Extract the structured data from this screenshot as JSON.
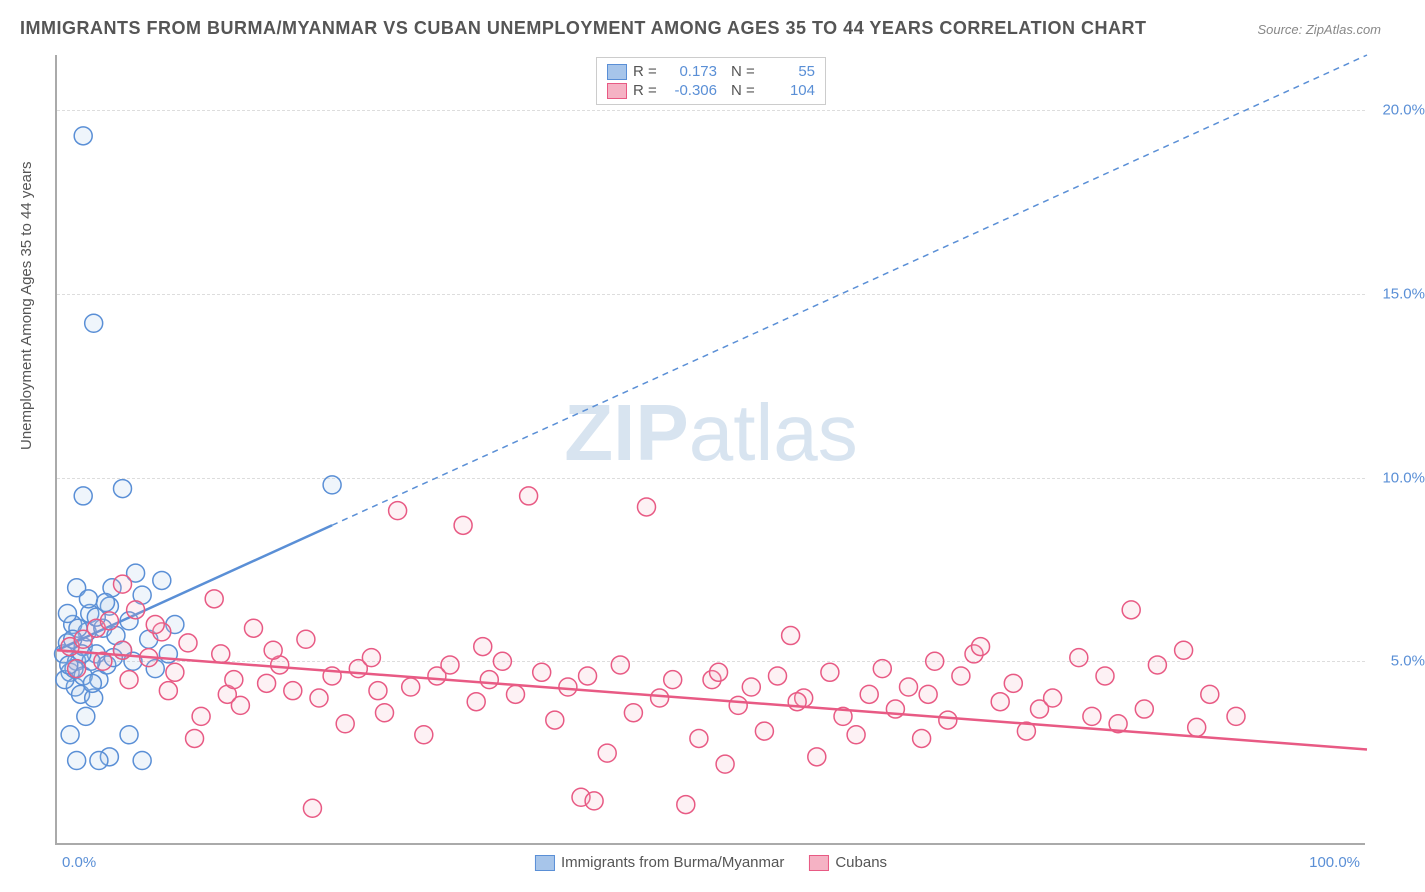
{
  "title": "IMMIGRANTS FROM BURMA/MYANMAR VS CUBAN UNEMPLOYMENT AMONG AGES 35 TO 44 YEARS CORRELATION CHART",
  "source": "Source: ZipAtlas.com",
  "ylabel": "Unemployment Among Ages 35 to 44 years",
  "watermark_bold": "ZIP",
  "watermark_rest": "atlas",
  "chart": {
    "type": "scatter",
    "xlim": [
      0,
      100
    ],
    "ylim": [
      0,
      21.5
    ],
    "x_tick_min_label": "0.0%",
    "x_tick_max_label": "100.0%",
    "y_ticks": [
      5,
      10,
      15,
      20
    ],
    "y_tick_labels": [
      "5.0%",
      "10.0%",
      "15.0%",
      "20.0%"
    ],
    "grid_color": "#dddddd",
    "axis_color": "#aaaaaa",
    "background_color": "#ffffff",
    "marker_radius": 9,
    "marker_stroke_width": 1.5,
    "marker_fill_opacity": 0.18,
    "series": [
      {
        "name": "Immigrants from Burma/Myanmar",
        "short": "burma",
        "stroke": "#5a8fd6",
        "fill": "#a7c5ea",
        "R": "0.173",
        "N": "55",
        "trend": {
          "x1": 0,
          "y1": 5.3,
          "x2": 100,
          "y2": 21.5,
          "solid_until_x": 21
        },
        "points": [
          [
            0.5,
            5.2
          ],
          [
            0.8,
            5.5
          ],
          [
            1.0,
            4.7
          ],
          [
            1.2,
            6.0
          ],
          [
            1.5,
            5.0
          ],
          [
            1.4,
            4.3
          ],
          [
            2.0,
            5.4
          ],
          [
            1.8,
            4.1
          ],
          [
            2.3,
            5.8
          ],
          [
            2.5,
            6.3
          ],
          [
            2.0,
            4.6
          ],
          [
            3.0,
            5.2
          ],
          [
            2.8,
            4.0
          ],
          [
            2.2,
            3.5
          ],
          [
            3.5,
            5.9
          ],
          [
            3.2,
            4.5
          ],
          [
            1.0,
            3.0
          ],
          [
            1.5,
            2.3
          ],
          [
            4.0,
            6.5
          ],
          [
            4.5,
            5.7
          ],
          [
            3.8,
            4.9
          ],
          [
            5.0,
            5.3
          ],
          [
            4.2,
            7.0
          ],
          [
            5.5,
            6.1
          ],
          [
            6.0,
            7.4
          ],
          [
            5.8,
            5.0
          ],
          [
            6.5,
            6.8
          ],
          [
            7.0,
            5.6
          ],
          [
            8.0,
            7.2
          ],
          [
            7.5,
            4.8
          ],
          [
            4.0,
            2.4
          ],
          [
            3.2,
            2.3
          ],
          [
            6.5,
            2.3
          ],
          [
            5.5,
            3.0
          ],
          [
            8.5,
            5.2
          ],
          [
            9.0,
            6.0
          ],
          [
            2.0,
            9.5
          ],
          [
            5.0,
            9.7
          ],
          [
            2.8,
            14.2
          ],
          [
            2.0,
            19.3
          ],
          [
            1.5,
            7.0
          ],
          [
            2.4,
            6.7
          ],
          [
            3.0,
            6.2
          ],
          [
            3.7,
            6.6
          ],
          [
            4.3,
            5.1
          ],
          [
            0.8,
            6.3
          ],
          [
            1.6,
            5.9
          ],
          [
            0.6,
            4.5
          ],
          [
            1.3,
            4.8
          ],
          [
            2.6,
            5.0
          ],
          [
            21.0,
            9.8
          ],
          [
            1.2,
            5.6
          ],
          [
            0.9,
            4.9
          ],
          [
            1.9,
            5.2
          ],
          [
            2.7,
            4.4
          ]
        ]
      },
      {
        "name": "Cubans",
        "short": "cubans",
        "stroke": "#e85a84",
        "fill": "#f5b2c4",
        "R": "-0.306",
        "N": "104",
        "trend": {
          "x1": 0,
          "y1": 5.3,
          "x2": 100,
          "y2": 2.6,
          "solid_until_x": 100
        },
        "points": [
          [
            1.0,
            5.4
          ],
          [
            2.0,
            5.6
          ],
          [
            1.5,
            4.8
          ],
          [
            3.0,
            5.9
          ],
          [
            3.5,
            5.0
          ],
          [
            4.0,
            6.1
          ],
          [
            5.0,
            5.3
          ],
          [
            5.5,
            4.5
          ],
          [
            6.0,
            6.4
          ],
          [
            7.0,
            5.1
          ],
          [
            8.0,
            5.8
          ],
          [
            8.5,
            4.2
          ],
          [
            9.0,
            4.7
          ],
          [
            10.0,
            5.5
          ],
          [
            10.5,
            2.9
          ],
          [
            11.0,
            3.5
          ],
          [
            12.0,
            6.7
          ],
          [
            13.0,
            4.1
          ],
          [
            13.5,
            4.5
          ],
          [
            14.0,
            3.8
          ],
          [
            15.0,
            5.9
          ],
          [
            16.0,
            4.4
          ],
          [
            17.0,
            4.9
          ],
          [
            18.0,
            4.2
          ],
          [
            19.0,
            5.6
          ],
          [
            19.5,
            1.0
          ],
          [
            20.0,
            4.0
          ],
          [
            21.0,
            4.6
          ],
          [
            22.0,
            3.3
          ],
          [
            23.0,
            4.8
          ],
          [
            24.0,
            5.1
          ],
          [
            25.0,
            3.6
          ],
          [
            26.0,
            9.1
          ],
          [
            27.0,
            4.3
          ],
          [
            28.0,
            3.0
          ],
          [
            29.0,
            4.6
          ],
          [
            30.0,
            4.9
          ],
          [
            31.0,
            8.7
          ],
          [
            32.0,
            3.9
          ],
          [
            33.0,
            4.5
          ],
          [
            34.0,
            5.0
          ],
          [
            35.0,
            4.1
          ],
          [
            36.0,
            9.5
          ],
          [
            37.0,
            4.7
          ],
          [
            38.0,
            3.4
          ],
          [
            39.0,
            4.3
          ],
          [
            40.0,
            1.3
          ],
          [
            41.0,
            1.2
          ],
          [
            42.0,
            2.5
          ],
          [
            43.0,
            4.9
          ],
          [
            44.0,
            3.6
          ],
          [
            45.0,
            9.2
          ],
          [
            46.0,
            4.0
          ],
          [
            47.0,
            4.5
          ],
          [
            48.0,
            1.1
          ],
          [
            49.0,
            2.9
          ],
          [
            50.0,
            4.5
          ],
          [
            50.5,
            4.7
          ],
          [
            51.0,
            2.2
          ],
          [
            52.0,
            3.8
          ],
          [
            53.0,
            4.3
          ],
          [
            54.0,
            3.1
          ],
          [
            55.0,
            4.6
          ],
          [
            56.0,
            5.7
          ],
          [
            57.0,
            4.0
          ],
          [
            58.0,
            2.4
          ],
          [
            59.0,
            4.7
          ],
          [
            60.0,
            3.5
          ],
          [
            61.0,
            3.0
          ],
          [
            62.0,
            4.1
          ],
          [
            63.0,
            4.8
          ],
          [
            64.0,
            3.7
          ],
          [
            65.0,
            4.3
          ],
          [
            66.0,
            2.9
          ],
          [
            67.0,
            5.0
          ],
          [
            68.0,
            3.4
          ],
          [
            69.0,
            4.6
          ],
          [
            70.0,
            5.2
          ],
          [
            70.5,
            5.4
          ],
          [
            72.0,
            3.9
          ],
          [
            73.0,
            4.4
          ],
          [
            74.0,
            3.1
          ],
          [
            75.0,
            3.7
          ],
          [
            76.0,
            4.0
          ],
          [
            78.0,
            5.1
          ],
          [
            79.0,
            3.5
          ],
          [
            80.0,
            4.6
          ],
          [
            81.0,
            3.3
          ],
          [
            82.0,
            6.4
          ],
          [
            83.0,
            3.7
          ],
          [
            84.0,
            4.9
          ],
          [
            86.0,
            5.3
          ],
          [
            87.0,
            3.2
          ],
          [
            88.0,
            4.1
          ],
          [
            90.0,
            3.5
          ],
          [
            5.0,
            7.1
          ],
          [
            7.5,
            6.0
          ],
          [
            12.5,
            5.2
          ],
          [
            16.5,
            5.3
          ],
          [
            24.5,
            4.2
          ],
          [
            32.5,
            5.4
          ],
          [
            40.5,
            4.6
          ],
          [
            56.5,
            3.9
          ],
          [
            66.5,
            4.1
          ]
        ]
      }
    ]
  },
  "legend_top": {
    "rows": [
      {
        "swatch_fill": "#a7c5ea",
        "swatch_stroke": "#5a8fd6",
        "r_label": "R =",
        "r_val": "0.173",
        "n_label": "N =",
        "n_val": "55"
      },
      {
        "swatch_fill": "#f5b2c4",
        "swatch_stroke": "#e85a84",
        "r_label": "R =",
        "r_val": "-0.306",
        "n_label": "N =",
        "n_val": "104"
      }
    ]
  },
  "legend_bottom": {
    "items": [
      {
        "swatch_fill": "#a7c5ea",
        "swatch_stroke": "#5a8fd6",
        "label": "Immigrants from Burma/Myanmar"
      },
      {
        "swatch_fill": "#f5b2c4",
        "swatch_stroke": "#e85a84",
        "label": "Cubans"
      }
    ]
  }
}
